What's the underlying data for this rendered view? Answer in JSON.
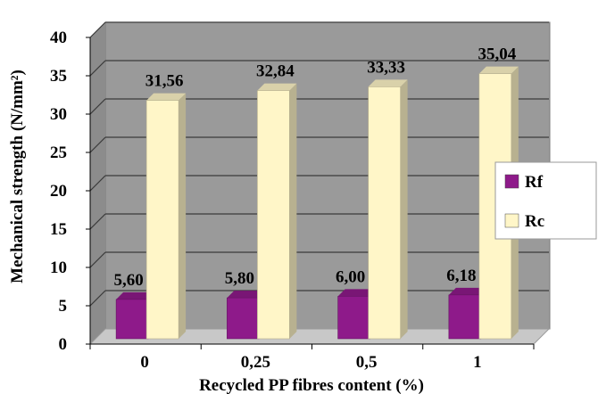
{
  "chart_data": {
    "type": "bar",
    "xlabel": "Recycled PP fibres content (%)",
    "ylabel": "Mechanical strength (N/mm²)",
    "categories": [
      "0",
      "0,25",
      "0,5",
      "1"
    ],
    "ylim": [
      0,
      40
    ],
    "yticks": [
      "0",
      "5",
      "10",
      "15",
      "20",
      "25",
      "30",
      "35",
      "40"
    ],
    "grid": true,
    "legend_position": "right",
    "series": [
      {
        "name": "Rf",
        "values": [
          5.6,
          5.8,
          6.0,
          6.18
        ],
        "labels": [
          "5,60",
          "5,80",
          "6,00",
          "6,18"
        ],
        "color": "#8e1a8a"
      },
      {
        "name": "Rc",
        "values": [
          31.56,
          32.84,
          33.33,
          35.04
        ],
        "labels": [
          "31,56",
          "32,84",
          "33,33",
          "35,04"
        ],
        "color": "#fff6c8"
      }
    ],
    "colors": {
      "plot_back_wall": "#9a9a9a",
      "floor": "#c8c8c8",
      "gridline": "#3a3a3a"
    }
  }
}
